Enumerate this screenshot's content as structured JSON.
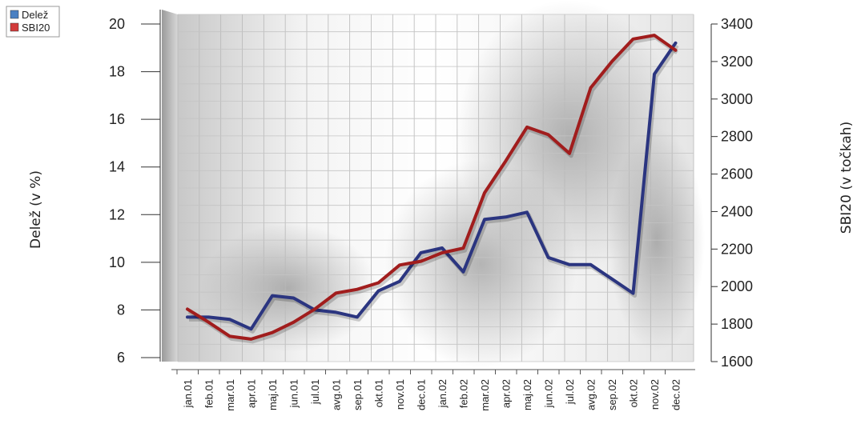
{
  "chart_data": {
    "type": "line",
    "title": "",
    "categories": [
      "jan.01",
      "feb.01",
      "mar.01",
      "apr.01",
      "maj.01",
      "jun.01",
      "jul.01",
      "avg.01",
      "sep.01",
      "okt.01",
      "nov.01",
      "dec.01",
      "jan.02",
      "feb.02",
      "mar.02",
      "apr.02",
      "maj.02",
      "jun.02",
      "jul.02",
      "avg.02",
      "sep.02",
      "okt.02",
      "nov.02",
      "dec.02"
    ],
    "y_left": {
      "label": "Delež (v %)",
      "min": 6,
      "max": 20,
      "ticks": [
        6,
        8,
        10,
        12,
        14,
        16,
        18,
        20
      ]
    },
    "y_right": {
      "label": "SBI20 (v točkah)",
      "min": 1600,
      "max": 3400,
      "ticks": [
        1600,
        1800,
        2000,
        2200,
        2400,
        2600,
        2800,
        3000,
        3200,
        3400
      ]
    },
    "series": [
      {
        "name": "Delež",
        "axis": "left",
        "color": "#2b3580",
        "values": [
          7.7,
          7.7,
          7.6,
          7.2,
          8.6,
          8.5,
          8.0,
          7.9,
          7.7,
          8.8,
          9.2,
          10.4,
          10.6,
          9.6,
          11.8,
          11.9,
          12.1,
          10.2,
          9.9,
          9.9,
          9.3,
          8.7,
          17.9,
          19.2
        ]
      },
      {
        "name": "SBI20",
        "axis": "right",
        "color": "#a11d1d",
        "values": [
          1880,
          1810,
          1735,
          1720,
          1755,
          1810,
          1880,
          1965,
          1985,
          2020,
          2115,
          2135,
          2180,
          2205,
          2500,
          2670,
          2850,
          2810,
          2710,
          3060,
          3200,
          3320,
          3340,
          3260
        ]
      }
    ],
    "legend": {
      "position": "top-left",
      "entries": [
        "Delež",
        "SBI20"
      ]
    },
    "grid": true
  }
}
